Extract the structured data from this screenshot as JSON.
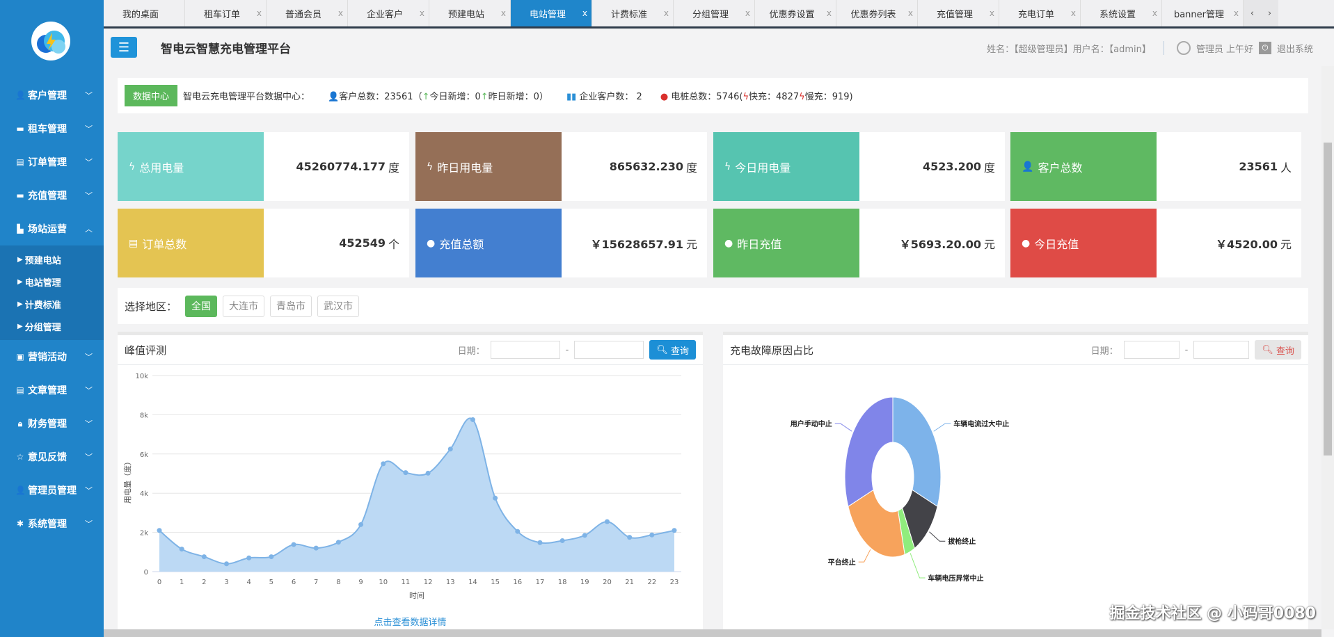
{
  "tabs": [
    {
      "label": "我的桌面",
      "closable": false
    },
    {
      "label": "租车订单",
      "closable": true
    },
    {
      "label": "普通会员",
      "closable": true
    },
    {
      "label": "企业客户",
      "closable": true
    },
    {
      "label": "预建电站",
      "closable": true
    },
    {
      "label": "电站管理",
      "closable": true,
      "active": true
    },
    {
      "label": "计费标准",
      "closable": true
    },
    {
      "label": "分组管理",
      "closable": true
    },
    {
      "label": "优惠券设置",
      "closable": true
    },
    {
      "label": "优惠券列表",
      "closable": true
    },
    {
      "label": "充值管理",
      "closable": true
    },
    {
      "label": "充电订单",
      "closable": true
    },
    {
      "label": "系统设置",
      "closable": true
    },
    {
      "label": "banner管理",
      "closable": true
    }
  ],
  "tab_close": "x",
  "header": {
    "title": "智电云智慧充电管理平台",
    "user_info": "姓名：【超级管理员】用户名：【admin】",
    "greeting": "管理员 上午好",
    "logout": "退出系统"
  },
  "sidebar": {
    "items": [
      {
        "label": "客户管理",
        "icon": "user-icon"
      },
      {
        "label": "租车管理",
        "icon": "card-icon"
      },
      {
        "label": "订单管理",
        "icon": "file-icon"
      },
      {
        "label": "充值管理",
        "icon": "card-icon"
      },
      {
        "label": "场站运营",
        "icon": "building-icon",
        "expanded": true,
        "children": [
          "预建电站",
          "电站管理",
          "计费标准",
          "分组管理"
        ]
      },
      {
        "label": "营销活动",
        "icon": "book-icon"
      },
      {
        "label": "文章管理",
        "icon": "list-icon"
      },
      {
        "label": "财务管理",
        "icon": "lock-icon"
      },
      {
        "label": "意见反馈",
        "icon": "star-icon"
      },
      {
        "label": "管理员管理",
        "icon": "admin-icon"
      },
      {
        "label": "系统管理",
        "icon": "gear-icon"
      }
    ]
  },
  "info": {
    "badge": "数据中心",
    "title": "智电云充电管理平台数据中心：",
    "customers": "客户总数：23561（",
    "today_new": "今日新增：0",
    "yesterday_new": "昨日新增：0）",
    "enterprise": "企业客户数： 2",
    "piles": "电桩总数：5746(",
    "fast": "快充：4827",
    "slow": "慢充：919)"
  },
  "cards": [
    {
      "label": "总用电量",
      "value": "45260774.177",
      "unit": "度",
      "color": "#76d4cb",
      "icon": "bolt-icon"
    },
    {
      "label": "昨日用电量",
      "value": "865632.230",
      "unit": "度",
      "color": "#956f57",
      "icon": "bolt-icon"
    },
    {
      "label": "今日用电量",
      "value": "4523.200",
      "unit": "度",
      "color": "#56c4b0",
      "icon": "bolt-icon"
    },
    {
      "label": "客户总数",
      "value": "23561",
      "unit": "人",
      "color": "#5fb962",
      "icon": "user-icon"
    },
    {
      "label": "订单总数",
      "value": "452549",
      "unit": "个",
      "color": "#e4c452",
      "icon": "clipboard-icon"
    },
    {
      "label": "充值总额",
      "value": "￥15628657.91",
      "unit": "元",
      "color": "#437fd0",
      "icon": "money-bag-icon"
    },
    {
      "label": "昨日充值",
      "value": "￥5693.20.00",
      "unit": "元",
      "color": "#5fb962",
      "icon": "money-bag-icon"
    },
    {
      "label": "今日充值",
      "value": "￥4520.00",
      "unit": "元",
      "color": "#df4b46",
      "icon": "money-bag-icon"
    }
  ],
  "region": {
    "label": "选择地区：",
    "options": [
      "全国",
      "大连市",
      "青岛市",
      "武汉市"
    ],
    "selected": "全国"
  },
  "peak": {
    "title": "峰值评测",
    "date_label": "日期：",
    "dash": "-",
    "query": "查询",
    "detail_link": "点击查看数据详情"
  },
  "fault": {
    "title": "充电故障原因占比",
    "date_label": "日期：",
    "dash": "-",
    "query": "查询"
  },
  "watermark": "掘金技术社区 @ 小码哥0080",
  "chart_data": [
    {
      "type": "area",
      "xlabel": "时间",
      "ylabel": "用电量（度）",
      "x": [
        0,
        1,
        2,
        3,
        4,
        5,
        6,
        7,
        8,
        9,
        10,
        11,
        12,
        13,
        14,
        15,
        16,
        17,
        18,
        19,
        20,
        21,
        22,
        23
      ],
      "values": [
        2100,
        1150,
        760,
        400,
        700,
        760,
        1380,
        1200,
        1500,
        2400,
        5500,
        5050,
        5020,
        6250,
        7750,
        3750,
        2050,
        1480,
        1580,
        1850,
        2550,
        1750,
        1870,
        2100
      ],
      "ylim": [
        0,
        10000
      ],
      "yticks": [
        "0",
        "2k",
        "4k",
        "6k",
        "8k",
        "10k"
      ],
      "grid": true,
      "color": "#7eb3e6"
    },
    {
      "type": "pie",
      "donut": true,
      "legend": "none",
      "slices": [
        {
          "name": "车辆电流过大中止",
          "value": 31,
          "color": "#7db3ea"
        },
        {
          "name": "拔枪终止",
          "value": 11.5,
          "color": "#434348"
        },
        {
          "name": "车辆电压异常中止",
          "value": 3.5,
          "color": "#90ed7d"
        },
        {
          "name": "平台终止",
          "value": 23,
          "color": "#f7a35c"
        },
        {
          "name": "用户手动中止",
          "value": 31,
          "color": "#8085e9"
        }
      ]
    }
  ]
}
